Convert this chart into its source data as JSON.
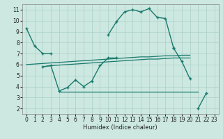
{
  "xlabel": "Humidex (Indice chaleur)",
  "background_color": "#cce8e0",
  "grid_color": "#aacfc8",
  "line_color": "#1a7a6e",
  "x_values": [
    0,
    1,
    2,
    3,
    4,
    5,
    6,
    7,
    8,
    9,
    10,
    11,
    12,
    13,
    14,
    15,
    16,
    17,
    18,
    19,
    20,
    21,
    22,
    23
  ],
  "line_top": [
    9.3,
    7.7,
    7.0,
    7.0,
    null,
    null,
    null,
    null,
    null,
    null,
    null,
    null,
    null,
    null,
    null,
    null,
    null,
    null,
    null,
    null,
    null,
    null,
    null,
    null
  ],
  "line_main": [
    null,
    null,
    null,
    null,
    null,
    null,
    null,
    null,
    null,
    null,
    8.7,
    9.9,
    10.8,
    11.0,
    10.8,
    11.1,
    10.3,
    10.2,
    7.5,
    null,
    null,
    null,
    null,
    null
  ],
  "line_lower": [
    null,
    null,
    5.8,
    5.9,
    3.6,
    3.9,
    4.6,
    4.0,
    4.5,
    5.9,
    6.6,
    6.6,
    null,
    null,
    null,
    null,
    null,
    null,
    null,
    null,
    null,
    null,
    null,
    null
  ],
  "line_tail_a": [
    null,
    null,
    null,
    null,
    null,
    null,
    null,
    null,
    null,
    null,
    null,
    null,
    null,
    null,
    null,
    null,
    null,
    null,
    7.5,
    6.3,
    4.7,
    null,
    null,
    null
  ],
  "line_tail_b": [
    null,
    null,
    null,
    null,
    null,
    null,
    null,
    null,
    null,
    null,
    null,
    null,
    null,
    null,
    null,
    null,
    null,
    null,
    null,
    null,
    null,
    2.0,
    3.4,
    null
  ],
  "trend_flat_low": [
    null,
    null,
    null,
    null,
    3.5,
    3.5,
    3.5,
    3.5,
    3.5,
    3.5,
    3.5,
    3.5,
    3.5,
    3.5,
    3.5,
    3.5,
    3.5,
    3.5,
    3.5,
    3.5,
    3.5,
    3.5,
    null,
    null
  ],
  "trend_mid_low": [
    null,
    null,
    5.8,
    5.9,
    5.95,
    6.0,
    6.05,
    6.1,
    6.15,
    6.2,
    6.25,
    6.3,
    6.35,
    6.4,
    6.45,
    6.5,
    6.5,
    6.55,
    6.6,
    6.6,
    6.6,
    null,
    null,
    null
  ],
  "trend_mid_high": [
    6.0,
    6.05,
    6.1,
    6.15,
    6.2,
    6.25,
    6.3,
    6.35,
    6.4,
    6.45,
    6.5,
    6.55,
    6.6,
    6.65,
    6.7,
    6.7,
    6.75,
    6.8,
    6.8,
    6.85,
    6.85,
    null,
    null,
    null
  ],
  "xlim": [
    -0.5,
    23.5
  ],
  "ylim": [
    1.5,
    11.5
  ],
  "yticks": [
    2,
    3,
    4,
    5,
    6,
    7,
    8,
    9,
    10,
    11
  ],
  "xticks": [
    0,
    1,
    2,
    3,
    4,
    5,
    6,
    7,
    8,
    9,
    10,
    11,
    12,
    13,
    14,
    15,
    16,
    17,
    18,
    19,
    20,
    21,
    22,
    23
  ]
}
